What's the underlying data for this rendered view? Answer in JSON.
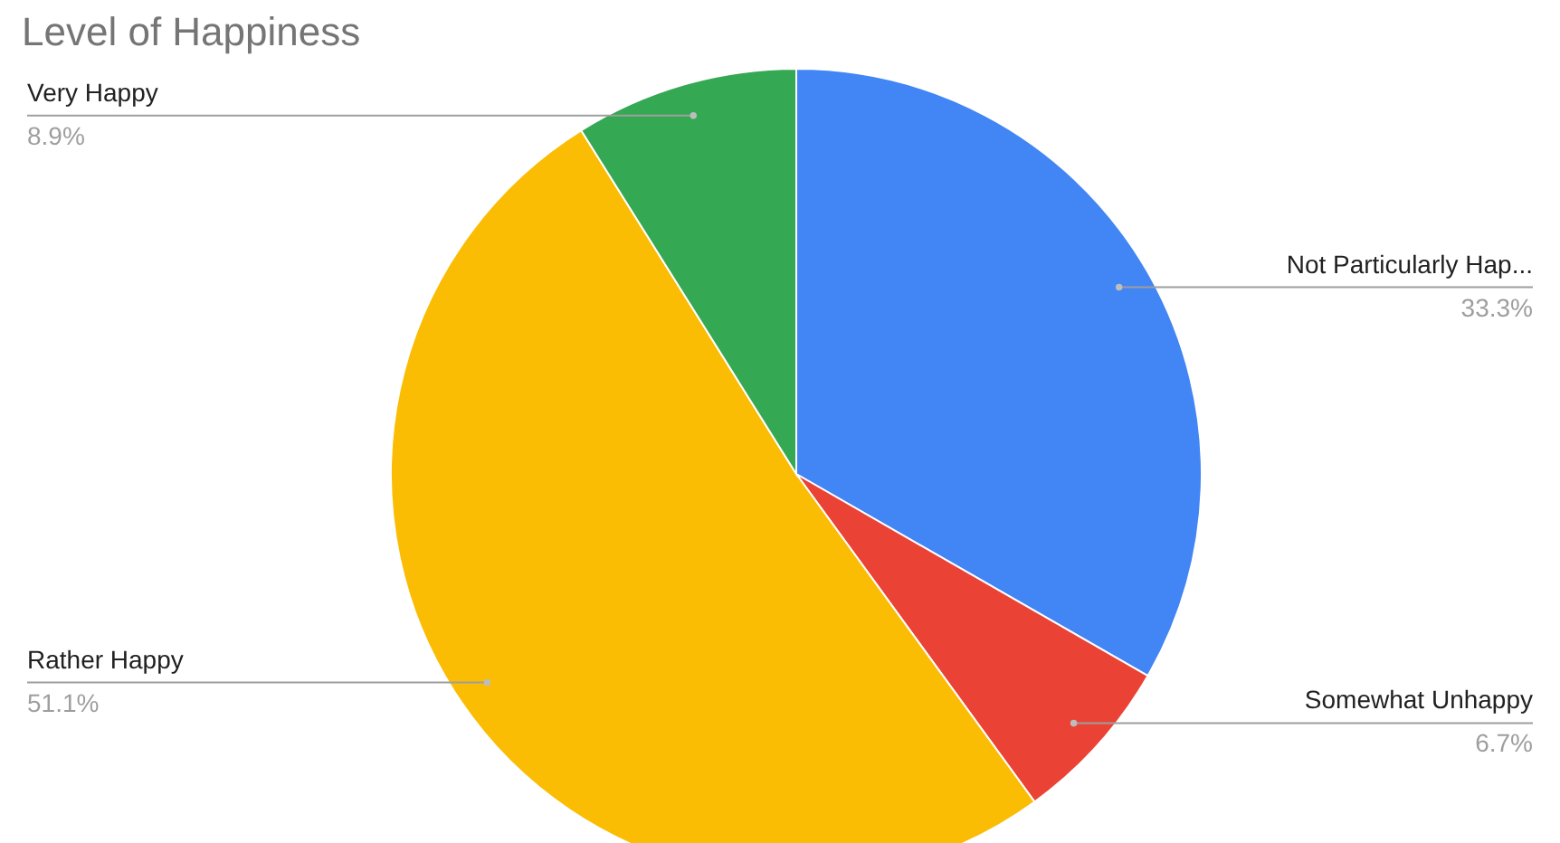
{
  "chart_data": {
    "type": "pie",
    "title": "Level of Happiness",
    "categories": [
      "Not Particularly Hap...",
      "Somewhat Unhappy",
      "Rather Happy",
      "Very Happy"
    ],
    "values": [
      33.3,
      6.7,
      51.1,
      8.9
    ],
    "value_labels": [
      "33.3%",
      "6.7%",
      "51.1%",
      "8.9%"
    ],
    "colors": [
      "#4285f4",
      "#ea4335",
      "#fbbc04",
      "#34a853"
    ]
  }
}
